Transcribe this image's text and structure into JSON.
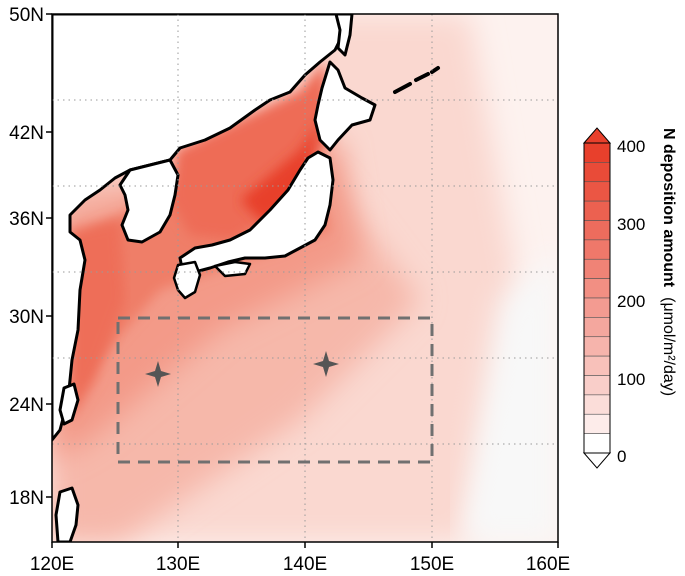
{
  "map": {
    "x_ticks": [
      "120E",
      "130E",
      "140E",
      "150E",
      "160E"
    ],
    "y_ticks": [
      "50N",
      "42N",
      "36N",
      "30N",
      "24N",
      "18N"
    ]
  },
  "markers": [
    {
      "name": "station-1"
    },
    {
      "name": "station-2"
    }
  ],
  "colorbar": {
    "title": "N deposition amount",
    "unit": "(μmol/m²/day)",
    "tick_labels": [
      "400",
      "300",
      "200",
      "100",
      "0"
    ],
    "levels": 16,
    "color_low": "#ffffff",
    "color_high": "#e8402c"
  },
  "colors": {
    "land": "#ffffff",
    "coast": "#000000",
    "box": "#707070",
    "marker": "#555555"
  }
}
